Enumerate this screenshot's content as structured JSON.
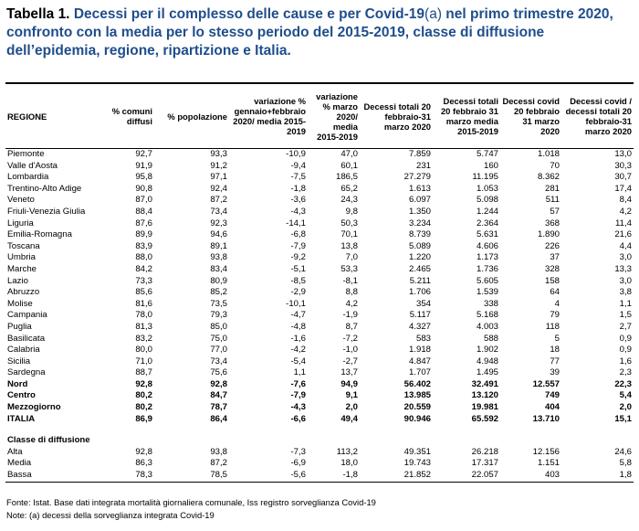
{
  "title": {
    "label": "Tabella 1.",
    "main": "Decessi per il complesso delle cause e per Covid-19",
    "note_ref": "(a)",
    "rest": " nel primo trimestre 2020, confronto con la media per lo stesso periodo del 2015-2019, classe di diffusione dell’epidemia, regione, ripartizione e Italia."
  },
  "table": {
    "headers": [
      "REGIONE",
      "% comuni diffusi",
      "% popolazione",
      "variazione % gennaio+febbraio 2020/ media 2015-2019",
      "variazione % marzo 2020/ media 2015-2019",
      "Decessi totali 20 febbraio-31 marzo 2020",
      "Decessi totali 20 febbraio 31 marzo media 2015-2019",
      "Decessi covid 20 febbraio 31 marzo 2020",
      "Decessi covid / decessi totali 20 febbraio-31 marzo 2020"
    ],
    "regions": [
      [
        "Piemonte",
        "92,7",
        "93,3",
        "-10,9",
        "47,0",
        "7.859",
        "5.747",
        "1.018",
        "13,0"
      ],
      [
        "Valle d'Aosta",
        "91,9",
        "91,2",
        "-9,4",
        "60,1",
        "231",
        "160",
        "70",
        "30,3"
      ],
      [
        "Lombardia",
        "95,8",
        "97,1",
        "-7,5",
        "186,5",
        "27.279",
        "11.195",
        "8.362",
        "30,7"
      ],
      [
        "Trentino-Alto Adige",
        "90,8",
        "92,4",
        "-1,8",
        "65,2",
        "1.613",
        "1.053",
        "281",
        "17,4"
      ],
      [
        "Veneto",
        "87,0",
        "87,2",
        "-3,6",
        "24,3",
        "6.097",
        "5.098",
        "511",
        "8,4"
      ],
      [
        "Friuli-Venezia Giulia",
        "88,4",
        "73,4",
        "-4,3",
        "9,8",
        "1.350",
        "1.244",
        "57",
        "4,2"
      ],
      [
        "Liguria",
        "87,6",
        "92,3",
        "-14,1",
        "50,3",
        "3.234",
        "2.364",
        "368",
        "11,4"
      ],
      [
        "Emilia-Romagna",
        "89,9",
        "94,6",
        "-6,8",
        "70,1",
        "8.739",
        "5.631",
        "1.890",
        "21,6"
      ],
      [
        "Toscana",
        "83,9",
        "89,1",
        "-7,9",
        "13,8",
        "5.089",
        "4.606",
        "226",
        "4,4"
      ],
      [
        "Umbria",
        "88,0",
        "93,8",
        "-9,2",
        "7,0",
        "1.220",
        "1.173",
        "37",
        "3,0"
      ],
      [
        "Marche",
        "84,2",
        "83,4",
        "-5,1",
        "53,3",
        "2.465",
        "1.736",
        "328",
        "13,3"
      ],
      [
        "Lazio",
        "73,3",
        "80,9",
        "-8,5",
        "-8,1",
        "5.211",
        "5.605",
        "158",
        "3,0"
      ],
      [
        "Abruzzo",
        "85,6",
        "85,2",
        "-2,9",
        "8,8",
        "1.706",
        "1.539",
        "64",
        "3,8"
      ],
      [
        "Molise",
        "81,6",
        "73,5",
        "-10,1",
        "4,2",
        "354",
        "338",
        "4",
        "1,1"
      ],
      [
        "Campania",
        "78,0",
        "79,3",
        "-4,7",
        "-1,9",
        "5.117",
        "5.168",
        "79",
        "1,5"
      ],
      [
        "Puglia",
        "81,3",
        "85,0",
        "-4,8",
        "8,7",
        "4.327",
        "4.003",
        "118",
        "2,7"
      ],
      [
        "Basilicata",
        "83,2",
        "75,0",
        "-1,6",
        "-7,2",
        "583",
        "588",
        "5",
        "0,9"
      ],
      [
        "Calabria",
        "80,0",
        "77,0",
        "-4,2",
        "-1,0",
        "1.918",
        "1.902",
        "18",
        "0,9"
      ],
      [
        "Sicilia",
        "71,0",
        "73,4",
        "-5,4",
        "-2,7",
        "4.847",
        "4.948",
        "77",
        "1,6"
      ],
      [
        "Sardegna",
        "88,7",
        "75,6",
        "1,1",
        "13,7",
        "1.707",
        "1.495",
        "39",
        "2,3"
      ]
    ],
    "totals": [
      [
        "Nord",
        "92,8",
        "92,8",
        "-7,6",
        "94,9",
        "56.402",
        "32.491",
        "12.557",
        "22,3"
      ],
      [
        "Centro",
        "80,2",
        "84,7",
        "-7,9",
        "9,1",
        "13.985",
        "13.120",
        "749",
        "5,4"
      ],
      [
        "Mezzogiorno",
        "80,2",
        "78,7",
        "-4,3",
        "2,0",
        "20.559",
        "19.981",
        "404",
        "2,0"
      ],
      [
        "ITALIA",
        "86,9",
        "86,4",
        "-6,6",
        "49,4",
        "90.946",
        "65.592",
        "13.710",
        "15,1"
      ]
    ],
    "classe_title": "Classe di diffusione",
    "classes": [
      [
        "Alta",
        "92,8",
        "93,8",
        "-7,3",
        "113,2",
        "49.351",
        "26.218",
        "12.156",
        "24,6"
      ],
      [
        "Media",
        "86,3",
        "87,2",
        "-6,9",
        "18,0",
        "19.743",
        "17.317",
        "1.151",
        "5,8"
      ],
      [
        "Bassa",
        "78,3",
        "78,5",
        "-5,6",
        "-1,8",
        "21.852",
        "22.057",
        "403",
        "1,8"
      ]
    ]
  },
  "footer": [
    "Fonte: Istat. Base dati integrata mortalità giornaliera comunale, Iss registro sorveglianza Covid-19",
    "Note: (a) decessi della sorveglianza integrata Covid-19"
  ]
}
